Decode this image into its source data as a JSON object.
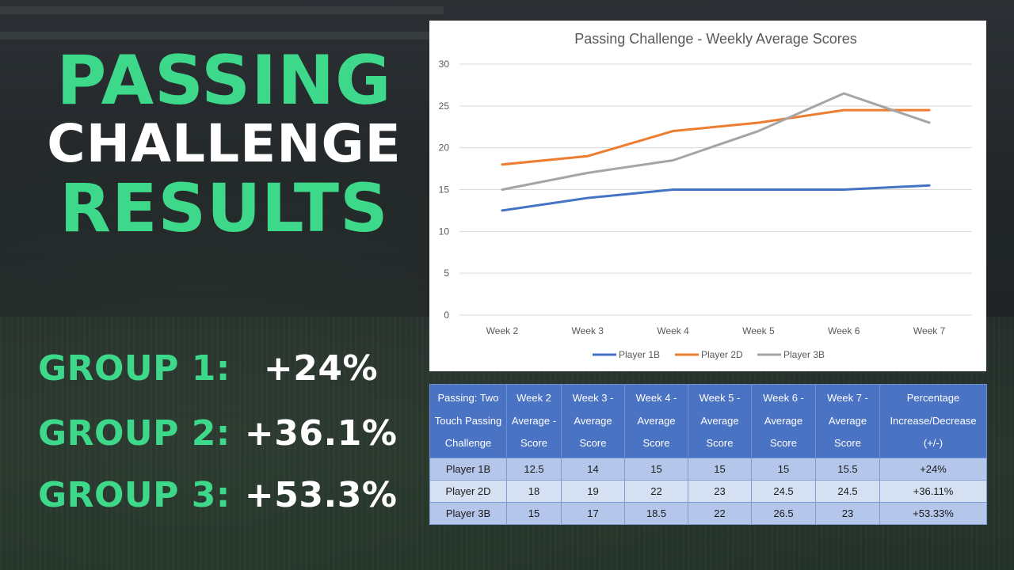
{
  "headline": {
    "line1": "PASSING",
    "line2": "CHALLENGE",
    "line3": "RESULTS"
  },
  "groups": [
    {
      "label": "GROUP 1:",
      "value": "+24%"
    },
    {
      "label": "GROUP 2:",
      "value": "+36.1%"
    },
    {
      "label": "GROUP 3:",
      "value": "+53.3%"
    }
  ],
  "colors": {
    "accent_green": "#3ed88a",
    "player_1b": "#4472c4",
    "player_2d": "#ed7d31",
    "player_3b": "#a5a5a5",
    "table_header": "#4a73c4"
  },
  "chart_data": {
    "type": "line",
    "title": "Passing Challenge - Weekly Average Scores",
    "categories": [
      "Week 2",
      "Week 3",
      "Week 4",
      "Week 5",
      "Week 6",
      "Week 7"
    ],
    "series": [
      {
        "name": "Player 1B",
        "values": [
          12.5,
          14,
          15,
          15,
          15,
          15.5
        ],
        "color": "#4472c4"
      },
      {
        "name": "Player 2D",
        "values": [
          18,
          19,
          22,
          23,
          24.5,
          24.5
        ],
        "color": "#ed7d31"
      },
      {
        "name": "Player 3B",
        "values": [
          15,
          17,
          18.5,
          22,
          26.5,
          23
        ],
        "color": "#a5a5a5"
      }
    ],
    "ylim": [
      0,
      30
    ],
    "yticks": [
      0,
      5,
      10,
      15,
      20,
      25,
      30
    ],
    "grid": true,
    "legend": "bottom"
  },
  "table": {
    "headers": [
      "Passing: Two Touch Passing Challenge",
      "Week 2 Average - Score",
      "Week 3 - Average Score",
      "Week 4 - Average Score",
      "Week 5 - Average Score",
      "Week 6 - Average Score",
      "Week 7 - Average Score",
      "Percentage Increase/Decrease (+/-)"
    ],
    "rows": [
      [
        "Player 1B",
        "12.5",
        "14",
        "15",
        "15",
        "15",
        "15.5",
        "+24%"
      ],
      [
        "Player 2D",
        "18",
        "19",
        "22",
        "23",
        "24.5",
        "24.5",
        "+36.11%"
      ],
      [
        "Player 3B",
        "15",
        "17",
        "18.5",
        "22",
        "26.5",
        "23",
        "+53.33%"
      ]
    ]
  }
}
